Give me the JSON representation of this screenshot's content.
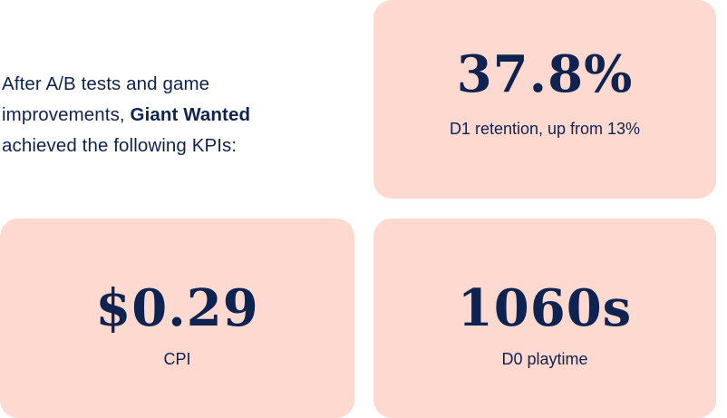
{
  "intro": {
    "line1": "After A/B tests and game",
    "line2_prefix": "improvements, ",
    "company": "Giant Wanted",
    "line3": "achieved the following KPIs:"
  },
  "kpis": [
    {
      "value": "37.8%",
      "label": "D1 retention, up from 13%"
    },
    {
      "value": "$0.29",
      "label": "CPI"
    },
    {
      "value": "1060s",
      "label": "D0 playtime"
    }
  ],
  "colors": {
    "card_background": "#fdd9cf",
    "text": "#0f2350"
  }
}
